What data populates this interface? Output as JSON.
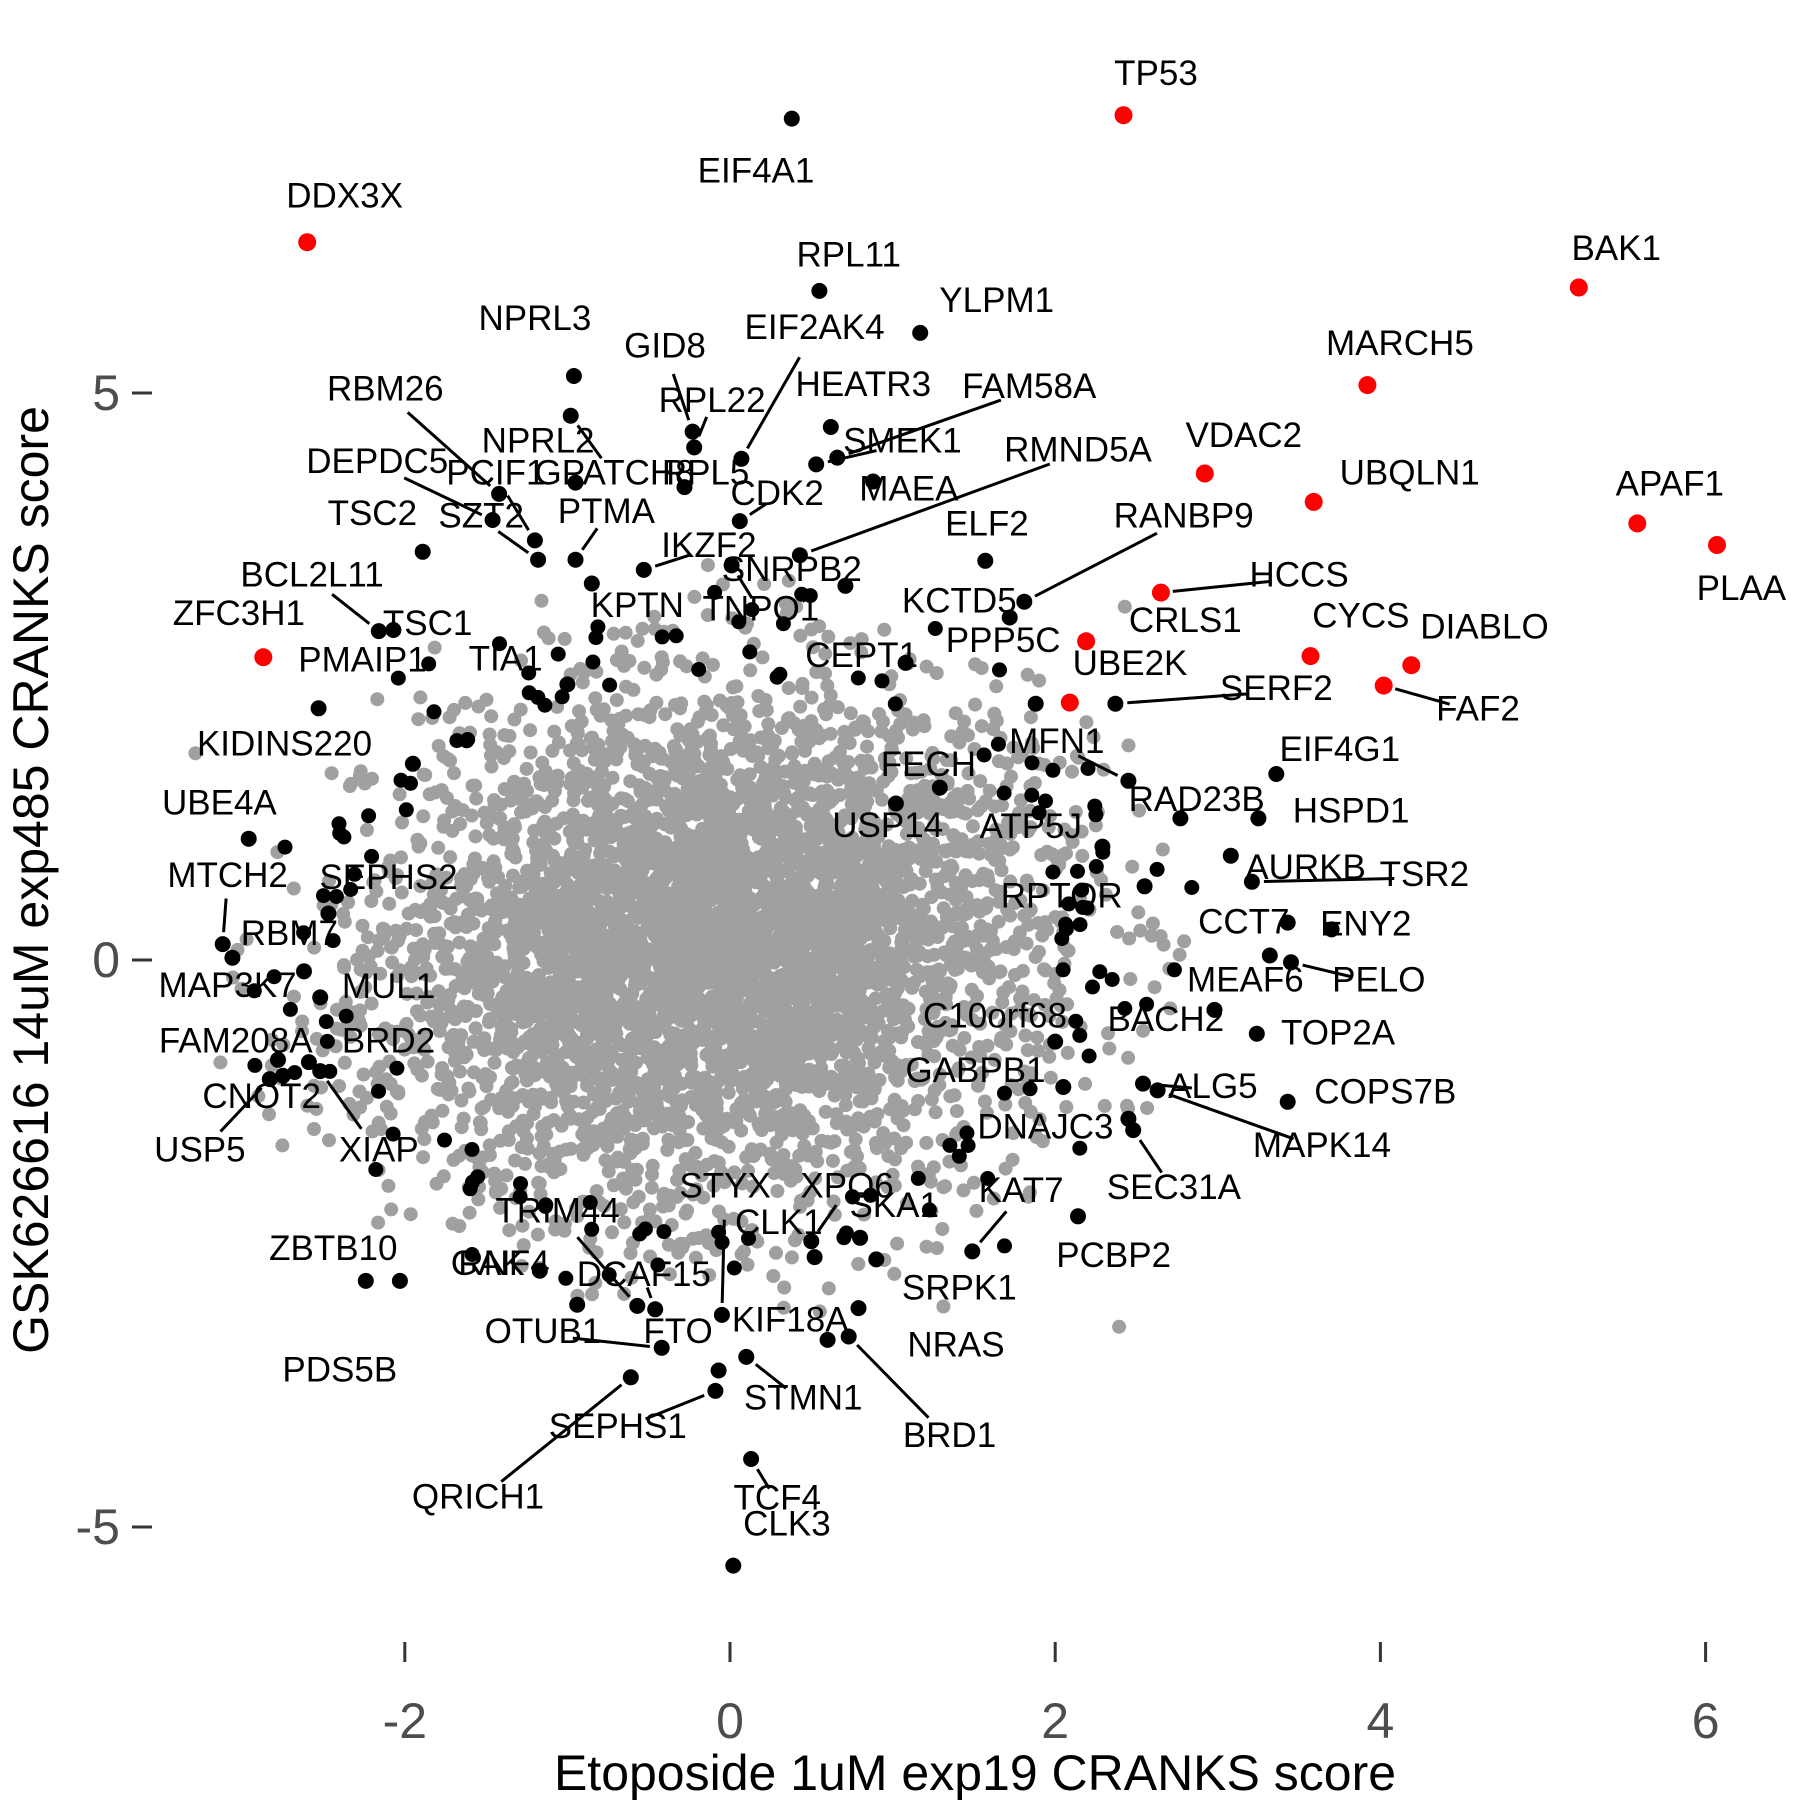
{
  "chart_data": {
    "type": "scatter",
    "title": "",
    "xlabel": "Etoposide 1uM exp19 CRANKS score",
    "ylabel": "GSK626616 14uM exp485 CRANKS score",
    "xlim": [
      -3.7,
      6.6
    ],
    "ylim": [
      -6.2,
      8.6
    ],
    "x_ticks": [
      -2,
      0,
      2,
      4,
      6
    ],
    "y_ticks": [
      5,
      0,
      -5
    ],
    "grid": false,
    "legend": "none",
    "colors": {
      "background_points": "#A0A0A0",
      "labeled_points": "#000000",
      "highlight_points": "#FF0000",
      "axis_text": "#4d4d4d"
    },
    "background_cloud": {
      "comment": "dense unlabeled gray gene cloud, rendered from seeded gaussian",
      "n": 4300,
      "center": [
        -0.12,
        0.12
      ],
      "sd": [
        0.98,
        1.08
      ],
      "rho": 0.12,
      "fringe_n": 450,
      "fringe_scale": 1.38,
      "seed": 42,
      "bounds": {
        "xmin": -3.3,
        "xmax": 2.88,
        "ymin": -3.52,
        "ymax": 3.5,
        "rmax": 3.0
      }
    },
    "unlabeled_black_ring": {
      "comment": "unlabeled significant genes at cloud edge",
      "n": 135,
      "sd": [
        0.98,
        1.08
      ],
      "r_min": 2.2,
      "r_max": 3.1,
      "seed": 1337,
      "bounds": {
        "xmin": -3.3,
        "xmax": 2.9,
        "ymin": -3.52,
        "ymax": 3.5
      }
    },
    "labeled_points": [
      {
        "g": "TP53",
        "x": 2.42,
        "y": 7.45,
        "lx": 2.62,
        "ly": 7.82,
        "red": true,
        "line": false
      },
      {
        "g": "DDX3X",
        "x": -2.6,
        "y": 6.33,
        "lx": -2.37,
        "ly": 6.74,
        "red": true,
        "line": false
      },
      {
        "g": "BAK1",
        "x": 5.22,
        "y": 5.93,
        "lx": 5.45,
        "ly": 6.28,
        "red": true,
        "line": false
      },
      {
        "g": "MARCH5",
        "x": 3.92,
        "y": 5.07,
        "lx": 4.12,
        "ly": 5.44,
        "red": true,
        "line": false
      },
      {
        "g": "VDAC2",
        "x": 2.92,
        "y": 4.29,
        "lx": 3.16,
        "ly": 4.63,
        "red": true,
        "line": false
      },
      {
        "g": "UBQLN1",
        "x": 3.59,
        "y": 4.04,
        "lx": 4.18,
        "ly": 4.3,
        "red": true,
        "line": false
      },
      {
        "g": "APAF1",
        "x": 5.58,
        "y": 3.85,
        "lx": 5.78,
        "ly": 4.2,
        "red": true,
        "line": false
      },
      {
        "g": "PLAA",
        "x": 6.07,
        "y": 3.66,
        "lx": 6.22,
        "ly": 3.28,
        "red": true,
        "line": false
      },
      {
        "g": "HCCS",
        "x": 2.65,
        "y": 3.24,
        "lx": 3.5,
        "ly": 3.4,
        "red": true,
        "line": true
      },
      {
        "g": "CRLS1",
        "x": 2.19,
        "y": 2.81,
        "lx": 2.8,
        "ly": 3.0,
        "red": true,
        "line": false
      },
      {
        "g": "CYCS",
        "x": 3.57,
        "y": 2.68,
        "lx": 3.88,
        "ly": 3.04,
        "red": true,
        "line": false
      },
      {
        "g": "DIABLO",
        "x": 4.19,
        "y": 2.6,
        "lx": 4.64,
        "ly": 2.94,
        "red": true,
        "line": false
      },
      {
        "g": "FAF2",
        "x": 4.02,
        "y": 2.42,
        "lx": 4.6,
        "ly": 2.22,
        "red": true,
        "line": true
      },
      {
        "g": "UBE2K",
        "x": 2.09,
        "y": 2.27,
        "lx": 2.46,
        "ly": 2.62,
        "red": true,
        "line": false
      },
      {
        "g": "ZFC3H1",
        "x": -2.87,
        "y": 2.67,
        "lx": -3.02,
        "ly": 3.06,
        "red": true,
        "line": false
      },
      {
        "g": "EIF4A1",
        "x": 0.38,
        "y": 7.42,
        "lx": 0.16,
        "ly": 6.96,
        "red": false,
        "line": false
      },
      {
        "g": "RPL11",
        "x": 0.55,
        "y": 5.9,
        "lx": 0.73,
        "ly": 6.22,
        "red": false,
        "line": false
      },
      {
        "g": "YLPM1",
        "x": 1.17,
        "y": 5.53,
        "lx": 1.64,
        "ly": 5.82,
        "red": false,
        "line": false
      },
      {
        "g": "NPRL3",
        "x": -0.96,
        "y": 5.15,
        "lx": -1.2,
        "ly": 5.66,
        "red": false,
        "line": false
      },
      {
        "g": "RBM26",
        "x": -1.42,
        "y": 4.11,
        "lx": -2.12,
        "ly": 5.04,
        "red": false,
        "line": true
      },
      {
        "g": "GID8",
        "x": -0.23,
        "y": 4.66,
        "lx": -0.4,
        "ly": 5.42,
        "red": false,
        "line": true
      },
      {
        "g": "EIF2AK4",
        "x": 0.07,
        "y": 4.42,
        "lx": 0.52,
        "ly": 5.58,
        "red": false,
        "line": true
      },
      {
        "g": "RPL22",
        "x": -0.22,
        "y": 4.52,
        "lx": -0.11,
        "ly": 4.94,
        "red": false,
        "line": true
      },
      {
        "g": "NPRL2",
        "x": -0.95,
        "y": 4.21,
        "lx": -1.18,
        "ly": 4.58,
        "red": false,
        "line": false
      },
      {
        "g": "DEPDC5",
        "x": -1.46,
        "y": 3.88,
        "lx": -2.17,
        "ly": 4.4,
        "red": false,
        "line": true
      },
      {
        "g": "PCIF1",
        "x": -1.2,
        "y": 3.7,
        "lx": -1.44,
        "ly": 4.3,
        "red": false,
        "line": true
      },
      {
        "g": "GPATCH8",
        "x": -0.98,
        "y": 4.8,
        "lx": -0.71,
        "ly": 4.3,
        "red": false,
        "line": true
      },
      {
        "g": "RPL5",
        "x": -0.28,
        "y": 4.17,
        "lx": -0.15,
        "ly": 4.3,
        "red": false,
        "line": false
      },
      {
        "g": "HEATR3",
        "x": 0.62,
        "y": 4.7,
        "lx": 0.82,
        "ly": 5.08,
        "red": false,
        "line": false
      },
      {
        "g": "FAM58A",
        "x": 0.66,
        "y": 4.43,
        "lx": 1.84,
        "ly": 5.06,
        "red": false,
        "line": true
      },
      {
        "g": "SMEK1",
        "x": 0.53,
        "y": 4.37,
        "lx": 1.06,
        "ly": 4.58,
        "red": false,
        "line": true
      },
      {
        "g": "RMND5A",
        "x": 0.43,
        "y": 3.57,
        "lx": 2.14,
        "ly": 4.5,
        "red": false,
        "line": true
      },
      {
        "g": "TSC2",
        "x": -1.89,
        "y": 3.6,
        "lx": -2.2,
        "ly": 3.94,
        "red": false,
        "line": false
      },
      {
        "g": "SZT2",
        "x": -1.18,
        "y": 3.53,
        "lx": -1.53,
        "ly": 3.92,
        "red": false,
        "line": true
      },
      {
        "g": "PTMA",
        "x": -0.95,
        "y": 3.53,
        "lx": -0.76,
        "ly": 3.96,
        "red": false,
        "line": true
      },
      {
        "g": "CDK2",
        "x": 0.06,
        "y": 3.87,
        "lx": 0.29,
        "ly": 4.12,
        "red": false,
        "line": true
      },
      {
        "g": "MAEA",
        "x": 0.88,
        "y": 4.22,
        "lx": 1.1,
        "ly": 4.16,
        "red": false,
        "line": false
      },
      {
        "g": "ELF2",
        "x": 1.57,
        "y": 3.52,
        "lx": 1.58,
        "ly": 3.85,
        "red": false,
        "line": false
      },
      {
        "g": "RANBP9",
        "x": 1.81,
        "y": 3.16,
        "lx": 2.79,
        "ly": 3.92,
        "red": false,
        "line": true
      },
      {
        "g": "IKZF2",
        "x": -0.53,
        "y": 3.44,
        "lx": -0.13,
        "ly": 3.66,
        "red": false,
        "line": true
      },
      {
        "g": "SNRPB2",
        "x": 0.71,
        "y": 3.3,
        "lx": 0.38,
        "ly": 3.45,
        "red": false,
        "line": false
      },
      {
        "g": "KCTD5",
        "x": 1.72,
        "y": 3.02,
        "lx": 1.41,
        "ly": 3.17,
        "red": false,
        "line": false
      },
      {
        "g": "BCL2L11",
        "x": -2.16,
        "y": 2.9,
        "lx": -2.57,
        "ly": 3.4,
        "red": false,
        "line": true
      },
      {
        "g": "TSC1",
        "x": -2.07,
        "y": 2.91,
        "lx": -1.86,
        "ly": 2.97,
        "red": false,
        "line": false
      },
      {
        "g": "KPTN",
        "x": -0.85,
        "y": 3.32,
        "lx": -0.57,
        "ly": 3.13,
        "red": false,
        "line": false
      },
      {
        "g": "TNPO1",
        "x": 0.01,
        "y": 3.48,
        "lx": 0.19,
        "ly": 3.1,
        "red": false,
        "line": true
      },
      {
        "g": "PPP5C",
        "x": 1.88,
        "y": 2.26,
        "lx": 1.68,
        "ly": 2.82,
        "red": false,
        "line": false
      },
      {
        "g": "CEPT1",
        "x": 1.08,
        "y": 2.62,
        "lx": 0.81,
        "ly": 2.69,
        "red": false,
        "line": false
      },
      {
        "g": "PMAIP1",
        "x": -2.53,
        "y": 2.22,
        "lx": -2.26,
        "ly": 2.65,
        "red": false,
        "line": false
      },
      {
        "g": "TIA1",
        "x": -1.0,
        "y": 2.43,
        "lx": -1.38,
        "ly": 2.66,
        "red": false,
        "line": false
      },
      {
        "g": "SERF2",
        "x": 2.37,
        "y": 2.26,
        "lx": 3.36,
        "ly": 2.4,
        "red": false,
        "line": true
      },
      {
        "g": "MFN1",
        "x": 2.45,
        "y": 1.58,
        "lx": 2.01,
        "ly": 1.93,
        "red": false,
        "line": true
      },
      {
        "g": "KIDINS220",
        "x": -1.95,
        "y": 1.73,
        "lx": -2.74,
        "ly": 1.91,
        "red": false,
        "line": false
      },
      {
        "g": "FECH",
        "x": 1.29,
        "y": 1.52,
        "lx": 1.22,
        "ly": 1.73,
        "red": false,
        "line": false
      },
      {
        "g": "USP14",
        "x": 1.02,
        "y": 1.38,
        "lx": 0.97,
        "ly": 1.19,
        "red": false,
        "line": false
      },
      {
        "g": "ATP5J",
        "x": 2.29,
        "y": 1.0,
        "lx": 1.85,
        "ly": 1.18,
        "red": false,
        "line": false
      },
      {
        "g": "RAD23B",
        "x": 2.77,
        "y": 1.25,
        "lx": 2.87,
        "ly": 1.42,
        "red": false,
        "line": false
      },
      {
        "g": "HSPD1",
        "x": 3.25,
        "y": 1.25,
        "lx": 3.82,
        "ly": 1.32,
        "red": false,
        "line": false
      },
      {
        "g": "EIF4G1",
        "x": 3.36,
        "y": 1.64,
        "lx": 3.75,
        "ly": 1.86,
        "red": false,
        "line": false
      },
      {
        "g": "UBE4A",
        "x": -2.96,
        "y": 1.07,
        "lx": -3.14,
        "ly": 1.39,
        "red": false,
        "line": false
      },
      {
        "g": "MTCH2",
        "x": -3.12,
        "y": 0.14,
        "lx": -3.09,
        "ly": 0.75,
        "red": false,
        "line": true
      },
      {
        "g": "SEPHS2",
        "x": -2.47,
        "y": 0.41,
        "lx": -2.1,
        "ly": 0.73,
        "red": false,
        "line": false
      },
      {
        "g": "AURKB",
        "x": 3.08,
        "y": 0.92,
        "lx": 3.54,
        "ly": 0.82,
        "red": false,
        "line": false
      },
      {
        "g": "TSR2",
        "x": 3.21,
        "y": 0.69,
        "lx": 4.27,
        "ly": 0.76,
        "red": false,
        "line": true
      },
      {
        "g": "RBM7",
        "x": -3.06,
        "y": 0.02,
        "lx": -2.71,
        "ly": 0.24,
        "red": false,
        "line": false
      },
      {
        "g": "RPTOR",
        "x": 2.55,
        "y": 0.65,
        "lx": 2.04,
        "ly": 0.57,
        "red": false,
        "line": false
      },
      {
        "g": "CCT7",
        "x": 3.43,
        "y": 0.33,
        "lx": 3.16,
        "ly": 0.34,
        "red": false,
        "line": false
      },
      {
        "g": "ENY2",
        "x": 3.7,
        "y": 0.27,
        "lx": 3.91,
        "ly": 0.32,
        "red": false,
        "line": false
      },
      {
        "g": "MAP3K7",
        "x": -2.62,
        "y": -0.1,
        "lx": -3.09,
        "ly": -0.22,
        "red": false,
        "line": false
      },
      {
        "g": "MUL1",
        "x": -2.52,
        "y": -0.33,
        "lx": -2.1,
        "ly": -0.23,
        "red": false,
        "line": false
      },
      {
        "g": "MEAF6",
        "x": 3.32,
        "y": 0.04,
        "lx": 3.17,
        "ly": -0.17,
        "red": false,
        "line": false
      },
      {
        "g": "PELO",
        "x": 3.45,
        "y": -0.02,
        "lx": 3.99,
        "ly": -0.17,
        "red": false,
        "line": true
      },
      {
        "g": "FAM208A",
        "x": -2.78,
        "y": -0.88,
        "lx": -3.04,
        "ly": -0.71,
        "red": false,
        "line": false
      },
      {
        "g": "BRD2",
        "x": -2.59,
        "y": -0.9,
        "lx": -2.1,
        "ly": -0.71,
        "red": false,
        "line": false
      },
      {
        "g": "C10orf68",
        "x": 2.0,
        "y": -0.72,
        "lx": 1.63,
        "ly": -0.49,
        "red": false,
        "line": false
      },
      {
        "g": "BACH2",
        "x": 2.98,
        "y": -0.44,
        "lx": 2.68,
        "ly": -0.52,
        "red": false,
        "line": false
      },
      {
        "g": "TOP2A",
        "x": 3.24,
        "y": -0.65,
        "lx": 3.74,
        "ly": -0.64,
        "red": false,
        "line": false
      },
      {
        "g": "CNOT2",
        "x": -2.75,
        "y": -1.02,
        "lx": -2.88,
        "ly": -1.2,
        "red": false,
        "line": false
      },
      {
        "g": "GABPB1",
        "x": 2.05,
        "y": -1.12,
        "lx": 1.51,
        "ly": -0.97,
        "red": false,
        "line": false
      },
      {
        "g": "ALG5",
        "x": 2.54,
        "y": -1.09,
        "lx": 2.97,
        "ly": -1.11,
        "red": false,
        "line": true
      },
      {
        "g": "COPS7B",
        "x": 3.43,
        "y": -1.25,
        "lx": 4.03,
        "ly": -1.16,
        "red": false,
        "line": false
      },
      {
        "g": "USP5",
        "x": -2.83,
        "y": -1.05,
        "lx": -3.26,
        "ly": -1.67,
        "red": false,
        "line": true
      },
      {
        "g": "XIAP",
        "x": -2.52,
        "y": -0.98,
        "lx": -2.16,
        "ly": -1.67,
        "red": false,
        "line": true
      },
      {
        "g": "DNAJC3",
        "x": 2.45,
        "y": -1.4,
        "lx": 1.94,
        "ly": -1.47,
        "red": false,
        "line": false
      },
      {
        "g": "MAPK14",
        "x": 2.63,
        "y": -1.15,
        "lx": 3.64,
        "ly": -1.63,
        "red": false,
        "line": true
      },
      {
        "g": "SEC31A",
        "x": 2.48,
        "y": -1.5,
        "lx": 2.73,
        "ly": -2.0,
        "red": false,
        "line": true
      },
      {
        "g": "TRIM44",
        "x": -0.57,
        "y": -3.05,
        "lx": -1.06,
        "ly": -2.21,
        "red": false,
        "line": true
      },
      {
        "g": "STYX",
        "x": -0.05,
        "y": -3.13,
        "lx": -0.03,
        "ly": -1.99,
        "red": false,
        "line": true
      },
      {
        "g": "XPO6",
        "x": 0.5,
        "y": -2.48,
        "lx": 0.72,
        "ly": -1.99,
        "red": false,
        "line": true
      },
      {
        "g": "CLK1",
        "x": 0.52,
        "y": -2.62,
        "lx": 0.3,
        "ly": -2.31,
        "red": false,
        "line": false
      },
      {
        "g": "SKA1",
        "x": 0.8,
        "y": -2.45,
        "lx": 1.01,
        "ly": -2.16,
        "red": false,
        "line": false
      },
      {
        "g": "KAT7",
        "x": 1.49,
        "y": -2.57,
        "lx": 1.79,
        "ly": -2.03,
        "red": false,
        "line": true
      },
      {
        "g": "RNF4",
        "x": -0.94,
        "y": -3.04,
        "lx": -1.39,
        "ly": -2.67,
        "red": false,
        "line": false
      },
      {
        "g": "DCAF15",
        "x": -0.46,
        "y": -3.08,
        "lx": -0.53,
        "ly": -2.77,
        "red": false,
        "line": true
      },
      {
        "g": "ZBTB10",
        "x": -2.03,
        "y": -2.83,
        "lx": -2.44,
        "ly": -2.54,
        "red": false,
        "line": false
      },
      {
        "g": "GAK",
        "x": -1.17,
        "y": -2.74,
        "lx": -1.49,
        "ly": -2.67,
        "red": false,
        "line": false
      },
      {
        "g": "SRPK1",
        "x": 0.9,
        "y": -2.64,
        "lx": 1.41,
        "ly": -2.89,
        "red": false,
        "line": false
      },
      {
        "g": "PCBP2",
        "x": 2.14,
        "y": -2.26,
        "lx": 2.36,
        "ly": -2.6,
        "red": false,
        "line": false
      },
      {
        "g": "OTUB1",
        "x": -0.42,
        "y": -3.42,
        "lx": -1.15,
        "ly": -3.27,
        "red": false,
        "line": true
      },
      {
        "g": "FTO",
        "x": -0.07,
        "y": -3.62,
        "lx": -0.32,
        "ly": -3.27,
        "red": false,
        "line": false
      },
      {
        "g": "KIF18A",
        "x": 0.6,
        "y": -3.35,
        "lx": 0.37,
        "ly": -3.17,
        "red": false,
        "line": false
      },
      {
        "g": "NRAS",
        "x": 0.79,
        "y": -3.07,
        "lx": 1.39,
        "ly": -3.39,
        "red": false,
        "line": false
      },
      {
        "g": "PDS5B",
        "x": -2.24,
        "y": -2.83,
        "lx": -2.4,
        "ly": -3.61,
        "red": false,
        "line": false
      },
      {
        "g": "SEPHS1",
        "x": -0.09,
        "y": -3.8,
        "lx": -0.69,
        "ly": -4.11,
        "red": false,
        "line": true
      },
      {
        "g": "STMN1",
        "x": 0.1,
        "y": -3.5,
        "lx": 0.45,
        "ly": -3.86,
        "red": false,
        "line": true
      },
      {
        "g": "QRICH1",
        "x": -0.61,
        "y": -3.68,
        "lx": -1.55,
        "ly": -4.73,
        "red": false,
        "line": true
      },
      {
        "g": "TCF4",
        "x": 0.13,
        "y": -4.4,
        "lx": 0.29,
        "ly": -4.74,
        "red": false,
        "line": true
      },
      {
        "g": "BRD1",
        "x": 0.73,
        "y": -3.32,
        "lx": 1.35,
        "ly": -4.19,
        "red": false,
        "line": true
      },
      {
        "g": "CLK3",
        "x": 0.02,
        "y": -5.34,
        "lx": 0.35,
        "ly": -4.97,
        "red": false,
        "line": false
      }
    ]
  }
}
